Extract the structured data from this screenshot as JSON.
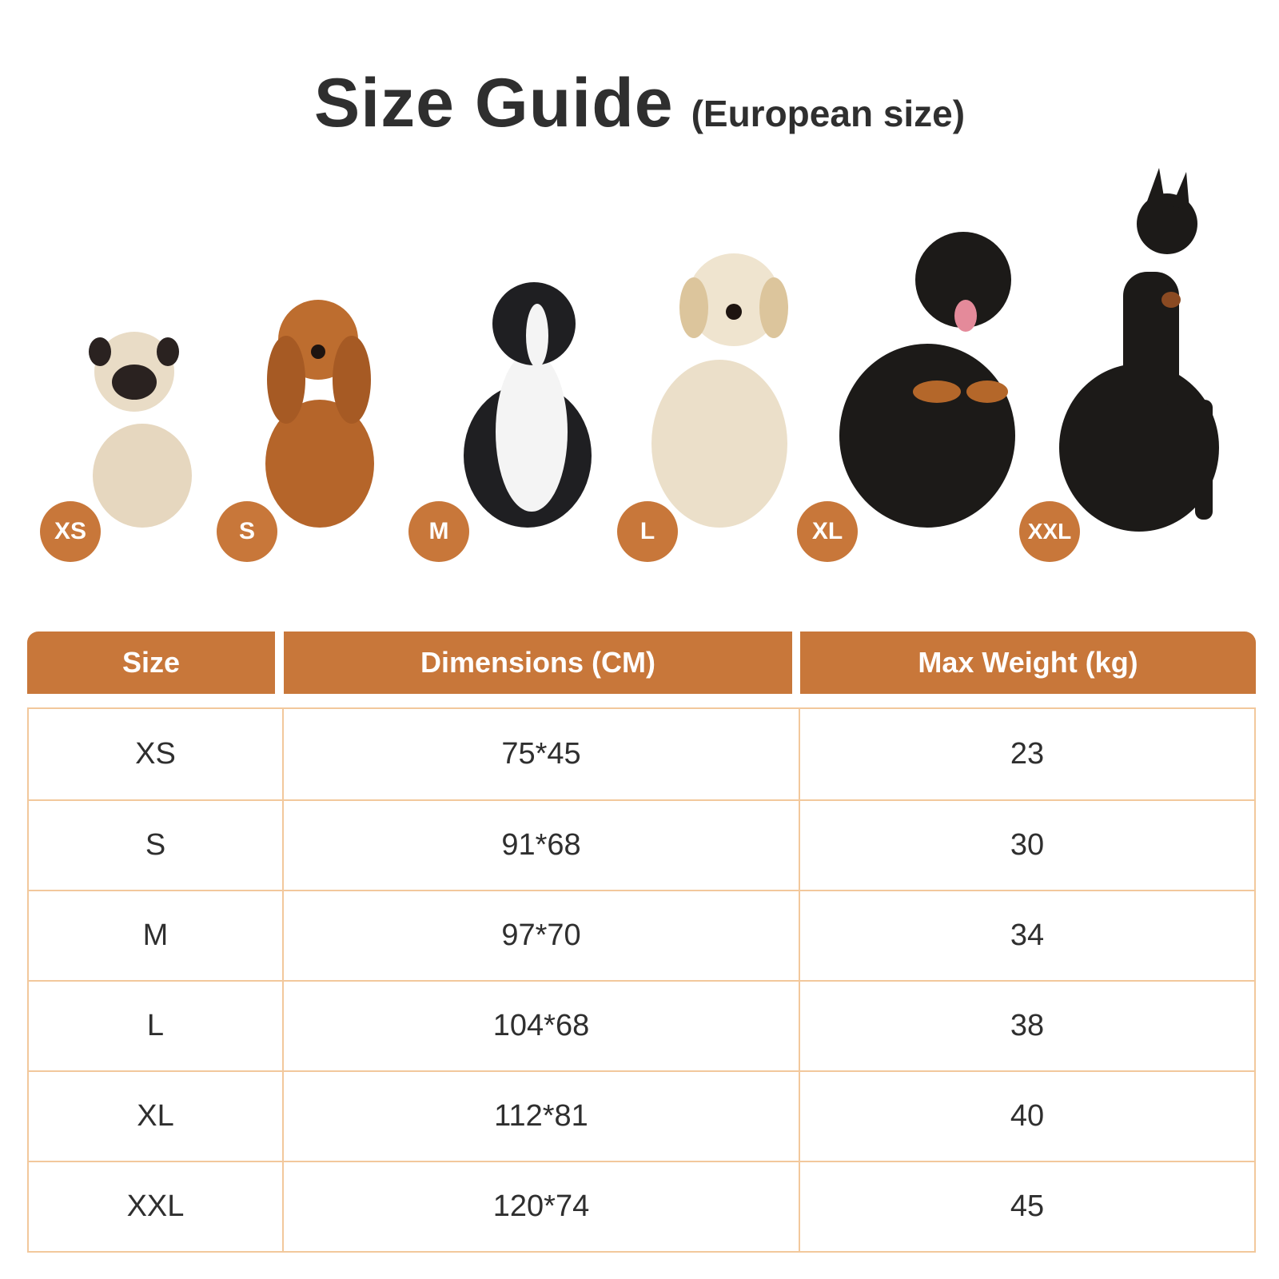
{
  "header": {
    "title": "Size Guide",
    "subtitle": "(European size)"
  },
  "badges": [
    "XS",
    "S",
    "M",
    "L",
    "XL",
    "XXL"
  ],
  "table": {
    "columns": [
      "Size",
      "Dimensions (CM)",
      "Max Weight (kg)"
    ],
    "rows": [
      [
        "XS",
        "75*45",
        "23"
      ],
      [
        "S",
        "91*68",
        "30"
      ],
      [
        "M",
        "97*70",
        "34"
      ],
      [
        "L",
        "104*68",
        "38"
      ],
      [
        "XL",
        "112*81",
        "40"
      ],
      [
        "XXL",
        "120*74",
        "45"
      ]
    ]
  }
}
